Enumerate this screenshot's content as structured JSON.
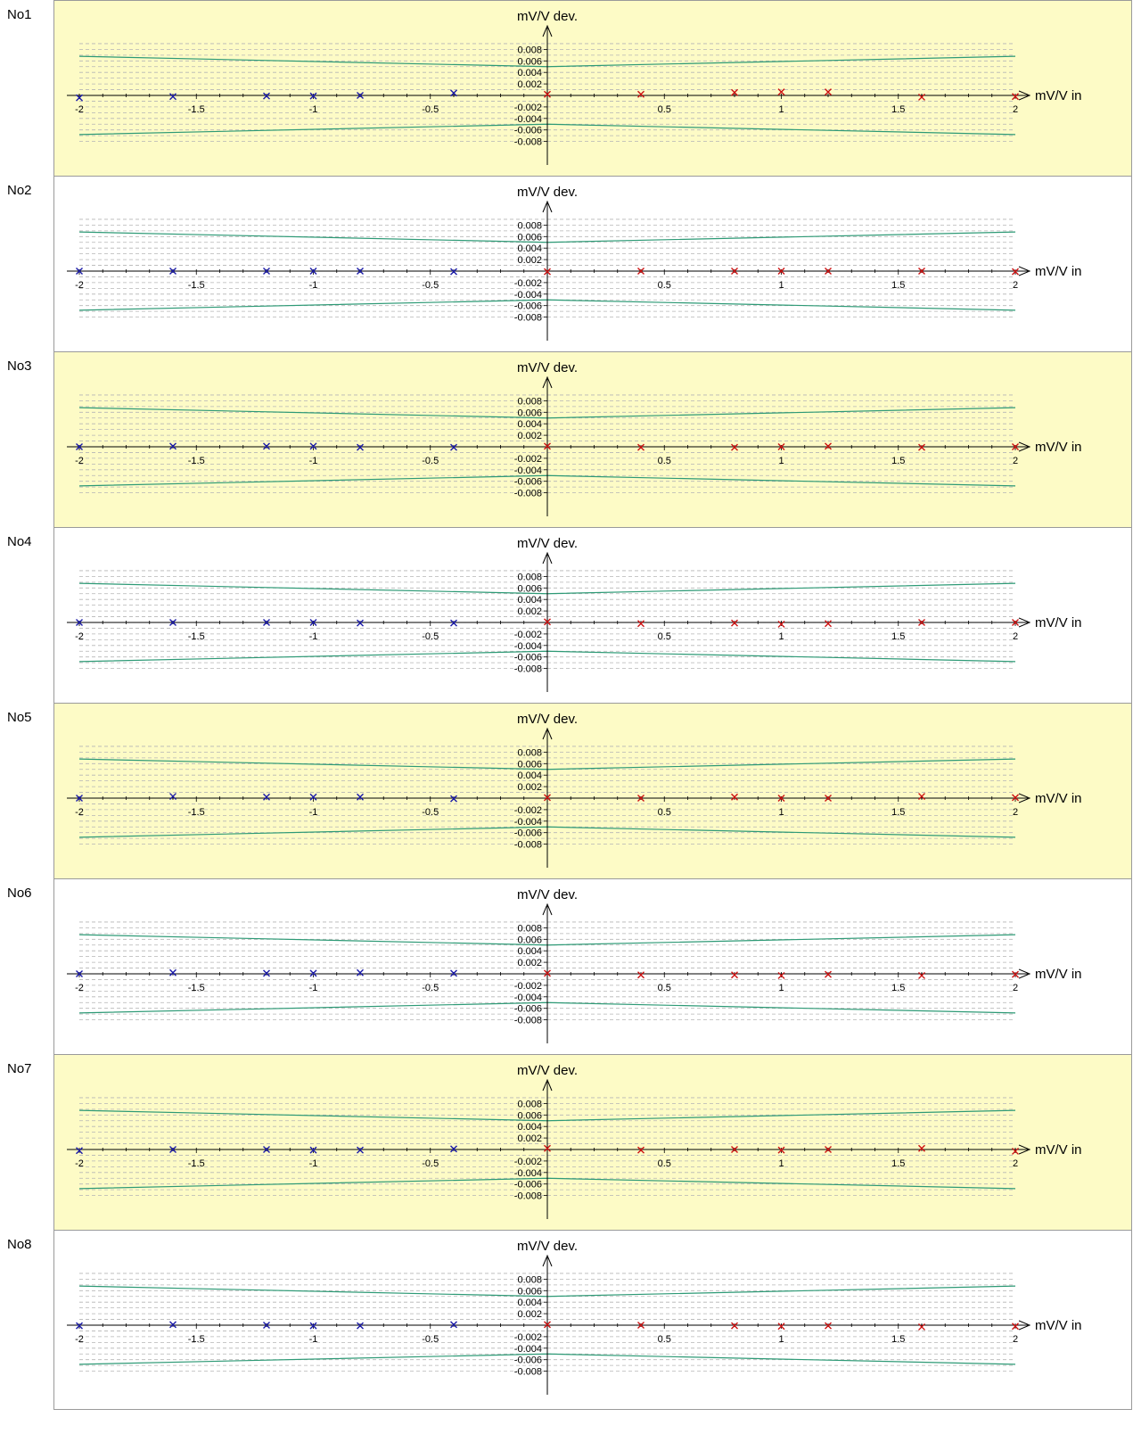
{
  "colors": {
    "panel_odd": "#fdfbc6",
    "panel_even": "#ffffff",
    "envelope": "#2e9a76",
    "negative_marker": "#1a1aa8",
    "positive_marker": "#cc1111",
    "grid": "#b5b5b5",
    "axis": "#000000"
  },
  "axis_titles": {
    "x": "mV/V in",
    "y": "mV/V dev."
  },
  "chart_data": [
    {
      "type": "scatter",
      "label": "No1",
      "xlim": [
        -2,
        2
      ],
      "ylim": [
        -0.008,
        0.008
      ],
      "x_ticks": [
        "-2",
        "-1.5",
        "-1",
        "-0.5",
        "0.5",
        "1",
        "1.5",
        "2"
      ],
      "y_ticks": [
        "0.008",
        "0.006",
        "0.004",
        "0.002",
        "-0.002",
        "-0.004",
        "-0.006",
        "-0.008"
      ],
      "limit_upper": [
        [
          -2,
          0.0068
        ],
        [
          0,
          0.005
        ],
        [
          2,
          0.0068
        ]
      ],
      "limit_lower": [
        [
          -2,
          -0.0068
        ],
        [
          0,
          -0.005
        ],
        [
          2,
          -0.0068
        ]
      ],
      "points_negative": [
        [
          -2,
          -0.0004
        ],
        [
          -1.6,
          -0.0002
        ],
        [
          -1.2,
          -0.0001
        ],
        [
          -1,
          -0.0001
        ],
        [
          -0.8,
          0
        ],
        [
          -0.4,
          0.0004
        ]
      ],
      "points_positive": [
        [
          0,
          0.0002
        ],
        [
          0.4,
          0.0002
        ],
        [
          0.8,
          0.0005
        ],
        [
          1,
          0.0006
        ],
        [
          1.2,
          0.0006
        ],
        [
          1.6,
          -0.0003
        ],
        [
          2,
          -0.0002
        ]
      ]
    },
    {
      "type": "scatter",
      "label": "No2",
      "xlim": [
        -2,
        2
      ],
      "ylim": [
        -0.008,
        0.008
      ],
      "x_ticks": [
        "-2",
        "-1.5",
        "-1",
        "-0.5",
        "0.5",
        "1",
        "1.5",
        "2"
      ],
      "y_ticks": [
        "0.008",
        "0.006",
        "0.004",
        "0.002",
        "-0.002",
        "-0.004",
        "-0.006",
        "-0.008"
      ],
      "limit_upper": [
        [
          -2,
          0.0068
        ],
        [
          0,
          0.005
        ],
        [
          2,
          0.0068
        ]
      ],
      "limit_lower": [
        [
          -2,
          -0.0068
        ],
        [
          0,
          -0.005
        ],
        [
          2,
          -0.0068
        ]
      ],
      "points_negative": [
        [
          -2,
          0
        ],
        [
          -1.6,
          0
        ],
        [
          -1.2,
          0
        ],
        [
          -1,
          0
        ],
        [
          -0.8,
          0
        ],
        [
          -0.4,
          -0.0001
        ]
      ],
      "points_positive": [
        [
          0,
          -0.0001
        ],
        [
          0.4,
          0
        ],
        [
          0.8,
          0
        ],
        [
          1,
          0
        ],
        [
          1.2,
          0
        ],
        [
          1.6,
          0
        ],
        [
          2,
          -0.0001
        ]
      ]
    },
    {
      "type": "scatter",
      "label": "No3",
      "xlim": [
        -2,
        2
      ],
      "ylim": [
        -0.008,
        0.008
      ],
      "x_ticks": [
        "-2",
        "-1.5",
        "-1",
        "-0.5",
        "0.5",
        "1",
        "1.5",
        "2"
      ],
      "y_ticks": [
        "0.008",
        "0.006",
        "0.004",
        "0.002",
        "-0.002",
        "-0.004",
        "-0.006",
        "-0.008"
      ],
      "limit_upper": [
        [
          -2,
          0.0068
        ],
        [
          0,
          0.005
        ],
        [
          2,
          0.0068
        ]
      ],
      "limit_lower": [
        [
          -2,
          -0.0068
        ],
        [
          0,
          -0.005
        ],
        [
          2,
          -0.0068
        ]
      ],
      "points_negative": [
        [
          -2,
          0
        ],
        [
          -1.6,
          0.0001
        ],
        [
          -1.2,
          0.0001
        ],
        [
          -1,
          0.0001
        ],
        [
          -0.8,
          -0.0001
        ],
        [
          -0.4,
          -0.0001
        ]
      ],
      "points_positive": [
        [
          0,
          0.0001
        ],
        [
          0.4,
          -0.0001
        ],
        [
          0.8,
          -0.0001
        ],
        [
          1,
          0
        ],
        [
          1.2,
          0.0001
        ],
        [
          1.6,
          -0.0001
        ],
        [
          2,
          0
        ]
      ]
    },
    {
      "type": "scatter",
      "label": "No4",
      "xlim": [
        -2,
        2
      ],
      "ylim": [
        -0.008,
        0.008
      ],
      "x_ticks": [
        "-2",
        "-1.5",
        "-1",
        "-0.5",
        "0.5",
        "1",
        "1.5",
        "2"
      ],
      "y_ticks": [
        "0.008",
        "0.006",
        "0.004",
        "0.002",
        "-0.002",
        "-0.004",
        "-0.006",
        "-0.008"
      ],
      "limit_upper": [
        [
          -2,
          0.0068
        ],
        [
          0,
          0.005
        ],
        [
          2,
          0.0068
        ]
      ],
      "limit_lower": [
        [
          -2,
          -0.0068
        ],
        [
          0,
          -0.005
        ],
        [
          2,
          -0.0068
        ]
      ],
      "points_negative": [
        [
          -2,
          0
        ],
        [
          -1.6,
          0
        ],
        [
          -1.2,
          0
        ],
        [
          -1,
          0
        ],
        [
          -0.8,
          -0.0001
        ],
        [
          -0.4,
          -0.0001
        ]
      ],
      "points_positive": [
        [
          0,
          0.0001
        ],
        [
          0.4,
          -0.0002
        ],
        [
          0.8,
          -0.0001
        ],
        [
          1,
          -0.0003
        ],
        [
          1.2,
          -0.0002
        ],
        [
          1.6,
          0
        ],
        [
          2,
          0
        ]
      ]
    },
    {
      "type": "scatter",
      "label": "No5",
      "xlim": [
        -2,
        2
      ],
      "ylim": [
        -0.008,
        0.008
      ],
      "x_ticks": [
        "-2",
        "-1.5",
        "-1",
        "-0.5",
        "0.5",
        "1",
        "1.5",
        "2"
      ],
      "y_ticks": [
        "0.008",
        "0.006",
        "0.004",
        "0.002",
        "-0.002",
        "-0.004",
        "-0.006",
        "-0.008"
      ],
      "limit_upper": [
        [
          -2,
          0.0068
        ],
        [
          0,
          0.005
        ],
        [
          2,
          0.0068
        ]
      ],
      "limit_lower": [
        [
          -2,
          -0.0068
        ],
        [
          0,
          -0.005
        ],
        [
          2,
          -0.0068
        ]
      ],
      "points_negative": [
        [
          -2,
          0
        ],
        [
          -1.6,
          0.0003
        ],
        [
          -1.2,
          0.0002
        ],
        [
          -1,
          0.0002
        ],
        [
          -0.8,
          0.0002
        ],
        [
          -0.4,
          -0.0001
        ]
      ],
      "points_positive": [
        [
          0,
          0.0001
        ],
        [
          0.4,
          0
        ],
        [
          0.8,
          0.0002
        ],
        [
          1,
          0
        ],
        [
          1.2,
          0
        ],
        [
          1.6,
          0.0003
        ],
        [
          2,
          0.0001
        ]
      ]
    },
    {
      "type": "scatter",
      "label": "No6",
      "xlim": [
        -2,
        2
      ],
      "ylim": [
        -0.008,
        0.008
      ],
      "x_ticks": [
        "-2",
        "-1.5",
        "-1",
        "-0.5",
        "0.5",
        "1",
        "1.5",
        "2"
      ],
      "y_ticks": [
        "0.008",
        "0.006",
        "0.004",
        "0.002",
        "-0.002",
        "-0.004",
        "-0.006",
        "-0.008"
      ],
      "limit_upper": [
        [
          -2,
          0.0068
        ],
        [
          0,
          0.005
        ],
        [
          2,
          0.0068
        ]
      ],
      "limit_lower": [
        [
          -2,
          -0.0068
        ],
        [
          0,
          -0.005
        ],
        [
          2,
          -0.0068
        ]
      ],
      "points_negative": [
        [
          -2,
          0
        ],
        [
          -1.6,
          0.0002
        ],
        [
          -1.2,
          0.0001
        ],
        [
          -1,
          0.0001
        ],
        [
          -0.8,
          0.0002
        ],
        [
          -0.4,
          0.0001
        ]
      ],
      "points_positive": [
        [
          0,
          0.0001
        ],
        [
          0.4,
          -0.0002
        ],
        [
          0.8,
          -0.0002
        ],
        [
          1,
          -0.0003
        ],
        [
          1.2,
          -0.0001
        ],
        [
          1.6,
          -0.0003
        ],
        [
          2,
          -0.0001
        ]
      ]
    },
    {
      "type": "scatter",
      "label": "No7",
      "xlim": [
        -2,
        2
      ],
      "ylim": [
        -0.008,
        0.008
      ],
      "x_ticks": [
        "-2",
        "-1.5",
        "-1",
        "-0.5",
        "0.5",
        "1",
        "1.5",
        "2"
      ],
      "y_ticks": [
        "0.008",
        "0.006",
        "0.004",
        "0.002",
        "-0.002",
        "-0.004",
        "-0.006",
        "-0.008"
      ],
      "limit_upper": [
        [
          -2,
          0.0068
        ],
        [
          0,
          0.005
        ],
        [
          2,
          0.0068
        ]
      ],
      "limit_lower": [
        [
          -2,
          -0.0068
        ],
        [
          0,
          -0.005
        ],
        [
          2,
          -0.0068
        ]
      ],
      "points_negative": [
        [
          -2,
          -0.0002
        ],
        [
          -1.6,
          0
        ],
        [
          -1.2,
          0
        ],
        [
          -1,
          -0.0001
        ],
        [
          -0.8,
          -0.0001
        ],
        [
          -0.4,
          0.0001
        ]
      ],
      "points_positive": [
        [
          0,
          0.0002
        ],
        [
          0.4,
          -0.0001
        ],
        [
          0.8,
          0
        ],
        [
          1,
          -0.0001
        ],
        [
          1.2,
          0
        ],
        [
          1.6,
          0.0002
        ],
        [
          2,
          -0.0003
        ]
      ]
    },
    {
      "type": "scatter",
      "label": "No8",
      "xlim": [
        -2,
        2
      ],
      "ylim": [
        -0.008,
        0.008
      ],
      "x_ticks": [
        "-2",
        "-1.5",
        "-1",
        "-0.5",
        "0.5",
        "1",
        "1.5",
        "2"
      ],
      "y_ticks": [
        "0.008",
        "0.006",
        "0.004",
        "0.002",
        "-0.002",
        "-0.004",
        "-0.006",
        "-0.008"
      ],
      "limit_upper": [
        [
          -2,
          0.0068
        ],
        [
          0,
          0.005
        ],
        [
          2,
          0.0068
        ]
      ],
      "limit_lower": [
        [
          -2,
          -0.0068
        ],
        [
          0,
          -0.005
        ],
        [
          2,
          -0.0068
        ]
      ],
      "points_negative": [
        [
          -2,
          -0.0001
        ],
        [
          -1.6,
          0.0001
        ],
        [
          -1.2,
          0
        ],
        [
          -1,
          -0.0001
        ],
        [
          -0.8,
          -0.0001
        ],
        [
          -0.4,
          0.0001
        ]
      ],
      "points_positive": [
        [
          0,
          0.0001
        ],
        [
          0.4,
          0
        ],
        [
          0.8,
          -0.0001
        ],
        [
          1,
          -0.0002
        ],
        [
          1.2,
          -0.0001
        ],
        [
          1.6,
          -0.0003
        ],
        [
          2,
          -0.0002
        ]
      ]
    }
  ]
}
